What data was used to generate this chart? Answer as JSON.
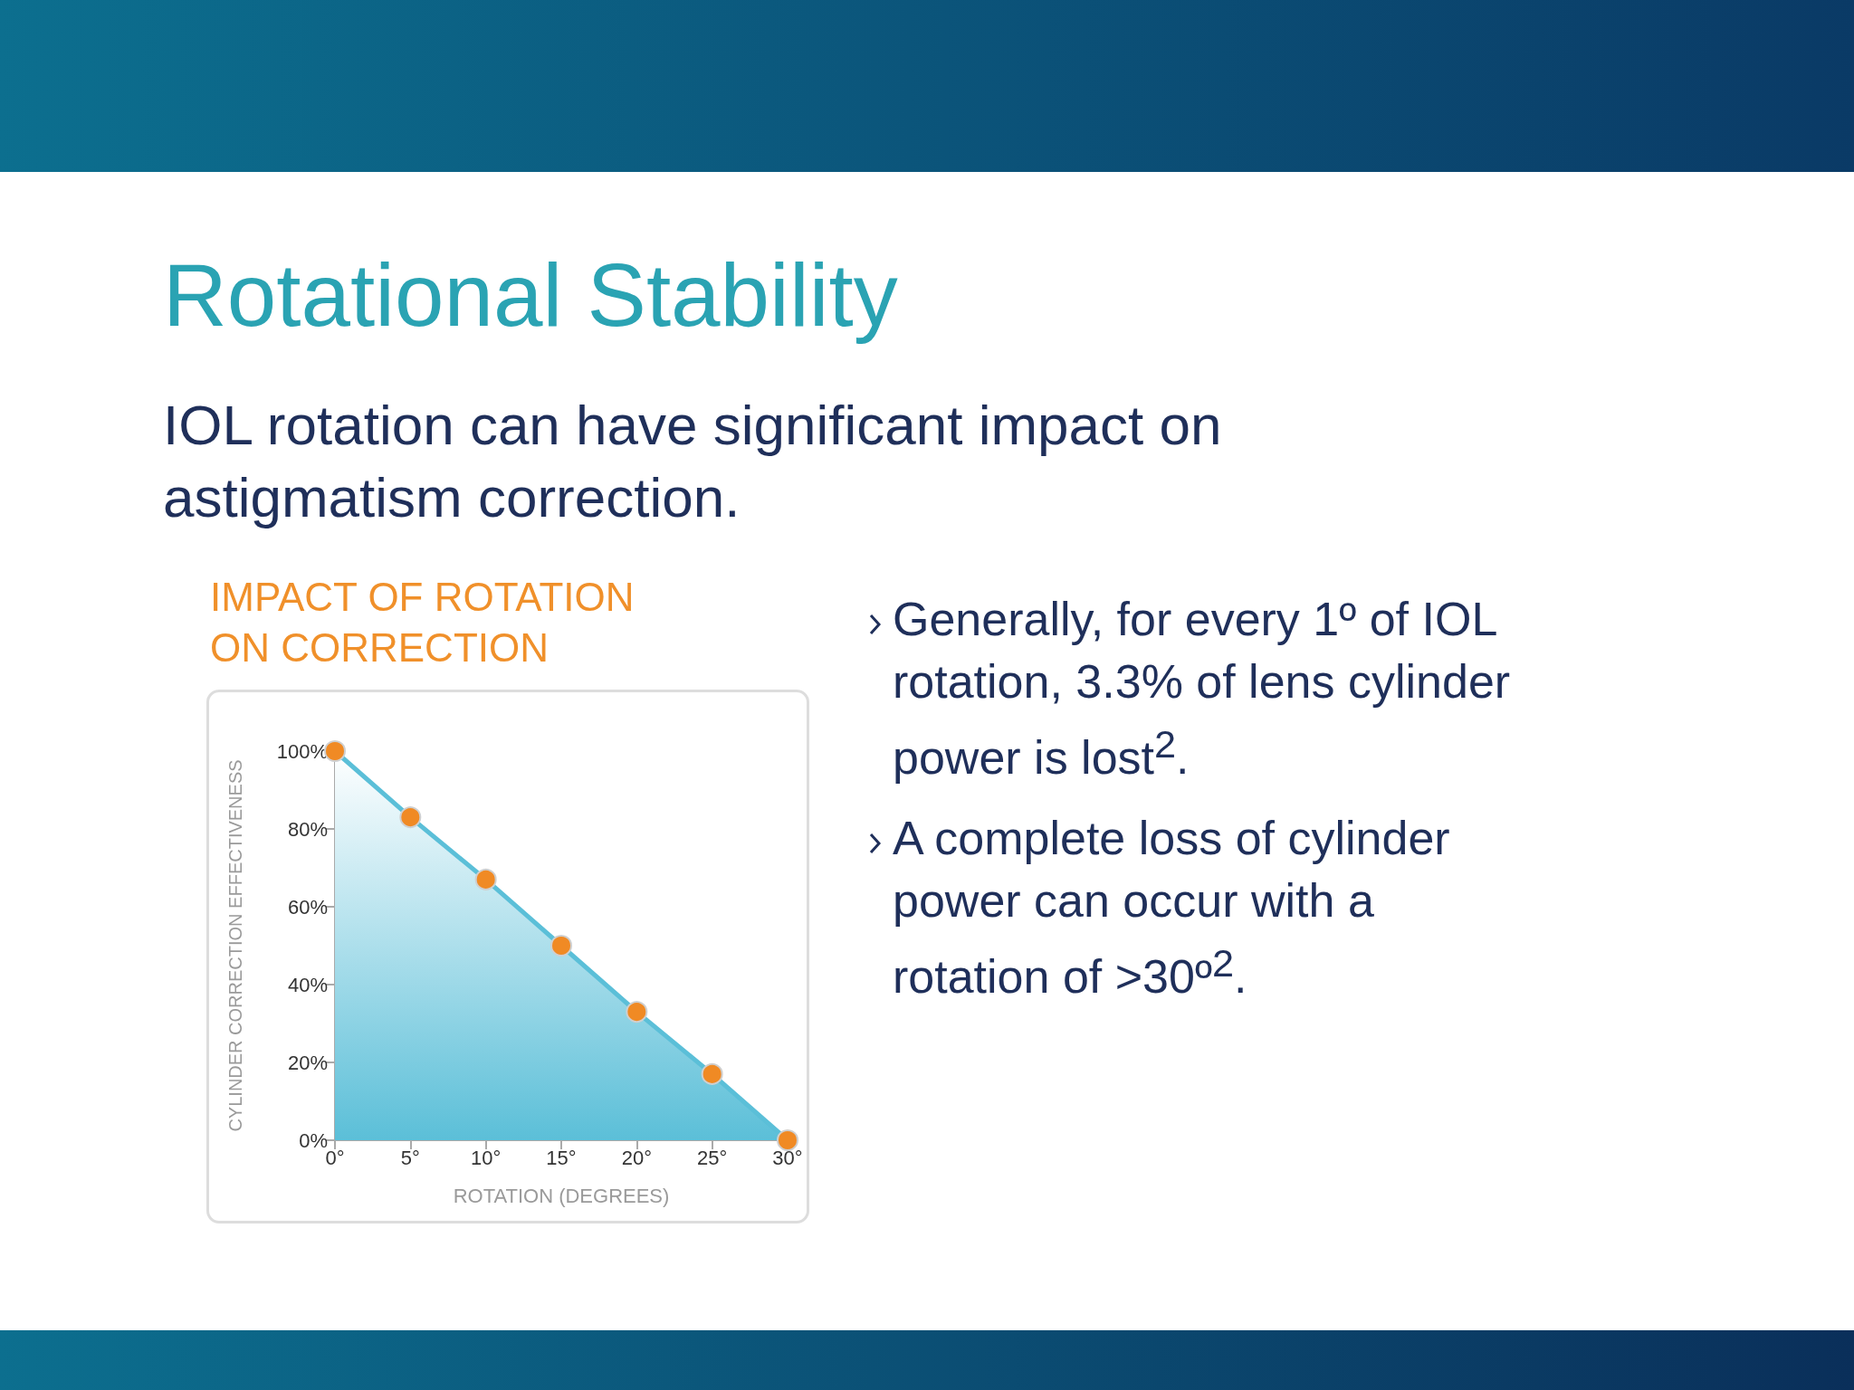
{
  "chart_data": {
    "type": "area",
    "title": "Rotational Stability",
    "subtitle": "IOL rotation can have significant impact on astigmatism correction.",
    "xlabel": "ROTATION (DEGREES)",
    "ylabel": "CYLINDER CORRECTION EFFECTIVENESS",
    "annotations": [
      "IMPACT OF ROTATION ON CORRECTION",
      "Generally, for every 1º of IOL rotation, 3.3% of lens cylinder power is lost$^{2}$.",
      "A complete loss of cylinder power can occur with a rotation of >30º$^{2}$."
    ],
    "x": [
      0,
      5,
      10,
      15,
      20,
      25,
      30
    ],
    "series": [
      {
        "color": "#5bbfd8",
        "colors": [
          "#f08a24",
          "#f08a24",
          "#f08a24",
          "#f08a24",
          "#f08a24",
          "#f08a24",
          "#f08a24"
        ],
        "values": [
          100,
          83,
          67,
          50,
          33,
          17,
          0
        ]
      }
    ],
    "xlim": [
      0,
      30
    ],
    "ylim": [
      0,
      100
    ],
    "xticks": [
      {
        "value": 0,
        "label": "0°"
      },
      {
        "value": 5,
        "label": "5°"
      },
      {
        "value": 10,
        "label": "10°"
      },
      {
        "value": 15,
        "label": "15°"
      },
      {
        "value": 20,
        "label": "20°"
      },
      {
        "value": 25,
        "label": "25°"
      },
      {
        "value": 30,
        "label": "30°"
      }
    ],
    "yticks": [
      {
        "value": 0,
        "label": "0%"
      },
      {
        "value": 20,
        "label": "20%"
      },
      {
        "value": 40,
        "label": "40%"
      },
      {
        "value": 60,
        "label": "60%"
      },
      {
        "value": 80,
        "label": "80%"
      },
      {
        "value": 100,
        "label": "100%"
      }
    ],
    "marker": "circle",
    "grid": false
  }
}
